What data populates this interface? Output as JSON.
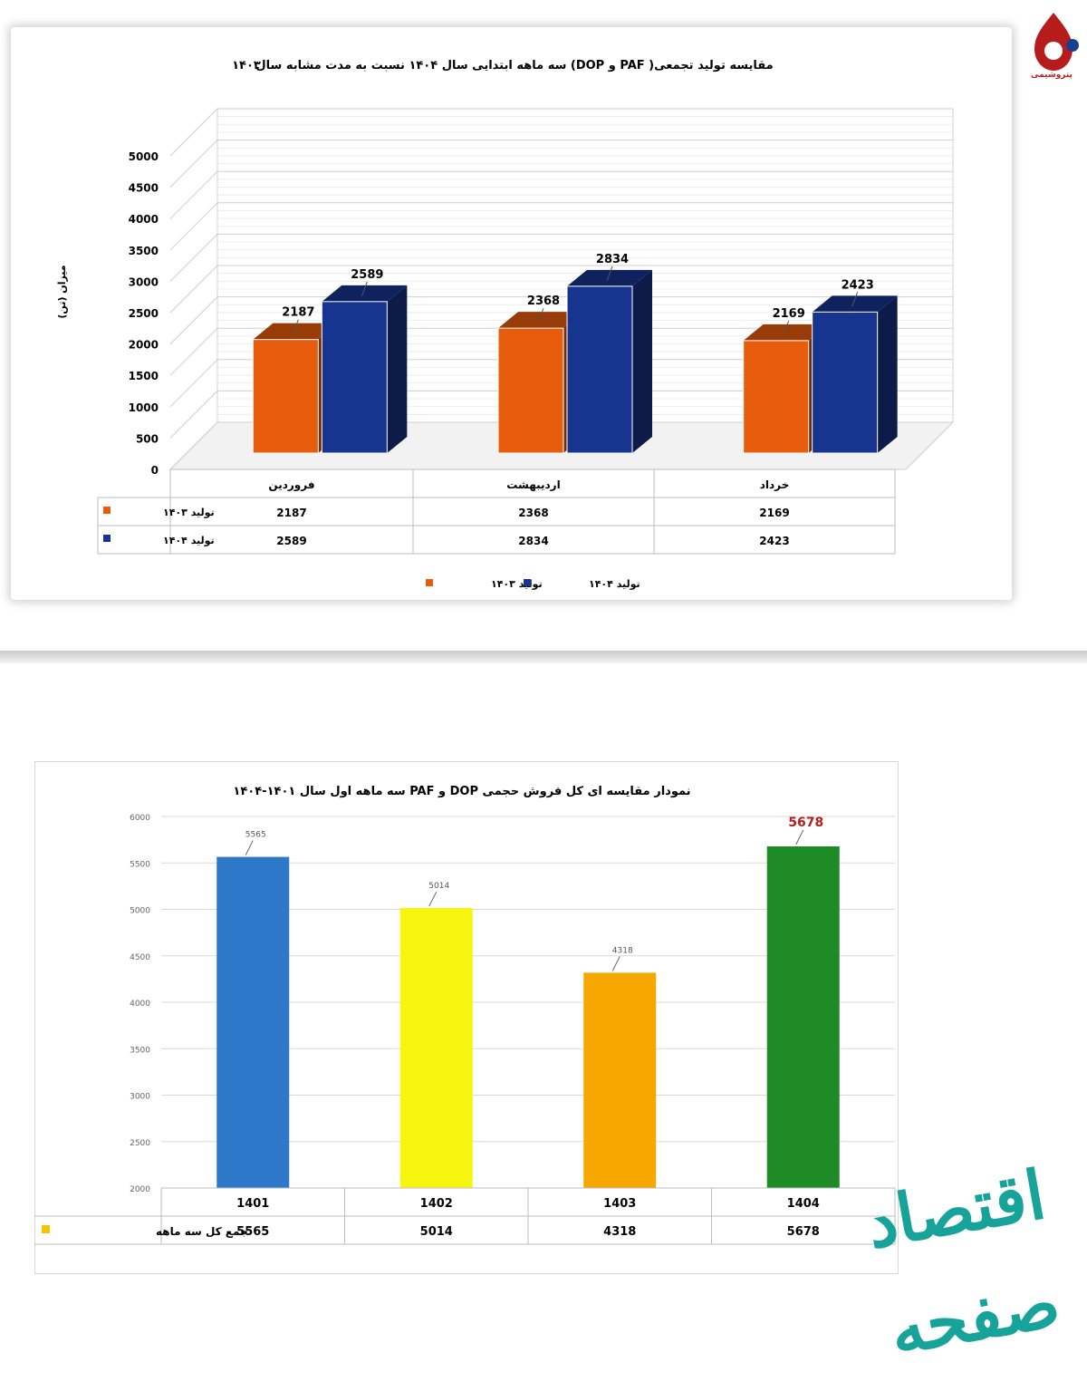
{
  "top_chart": {
    "title_line1": "مقایسه تولید تجمعی( PAF و DOP) سه ماهه ابتدایی سال ۱۴۰۴ نسبت به مدت مشابه سال",
    "title_line2": "۱۴۰۳",
    "ylabel": "میزان (تن)",
    "legend": [
      {
        "label": "تولید ۱۴۰۳",
        "color": "#e85c0d"
      },
      {
        "label": "تولید ۱۴۰۴",
        "color": "#17358f"
      }
    ]
  },
  "bottom_chart": {
    "title": "نمودار مقایسه ای کل فروش حجمی DOP و PAF سه ماهه اول سال ۱۴۰۱-۱۴۰۴",
    "row_label": "جمع کل سه ماهه",
    "highlight_label_color": "#b71c1c"
  },
  "logo": {
    "caption": "پتروشیمی"
  },
  "watermark": {
    "text": "اقتصاد صفحه"
  },
  "chart_data": [
    {
      "type": "bar",
      "title": "مقایسه تولید تجمعی( PAF و DOP) سه ماهه ابتدایی سال ۱۴۰۴ نسبت به مدت مشابه سال ۱۴۰۳",
      "categories": [
        "فروردین",
        "اردیبهشت",
        "خرداد"
      ],
      "series": [
        {
          "name": "تولید ۱۴۰۳",
          "values": [
            2187,
            2368,
            2169
          ],
          "color": "#e85c0d"
        },
        {
          "name": "تولید ۱۴۰۴",
          "values": [
            2589,
            2834,
            2423
          ],
          "color": "#17358f"
        }
      ],
      "ylabel": "میزان (تن)",
      "ylim": [
        0,
        5000
      ],
      "yticks": [
        0,
        500,
        1000,
        1500,
        2000,
        2500,
        3000,
        3500,
        4000,
        4500,
        5000
      ],
      "style": "3d",
      "data_table": true,
      "legend_position": "bottom"
    },
    {
      "type": "bar",
      "title": "نمودار مقایسه ای کل فروش حجمی DOP و PAF سه ماهه اول سال ۱۴۰۱-۱۴۰۴",
      "categories": [
        "1401",
        "1402",
        "1403",
        "1404"
      ],
      "series": [
        {
          "name": "جمع کل سه ماهه",
          "values": [
            5565,
            5014,
            4318,
            5678
          ]
        }
      ],
      "colors": [
        "#2e78c9",
        "#f5f50f",
        "#f7a800",
        "#1e8b25"
      ],
      "ylim": [
        2000,
        6000
      ],
      "yticks": [
        2000,
        2500,
        3000,
        3500,
        4000,
        4500,
        5000,
        5500,
        6000
      ],
      "data_table": true
    }
  ]
}
